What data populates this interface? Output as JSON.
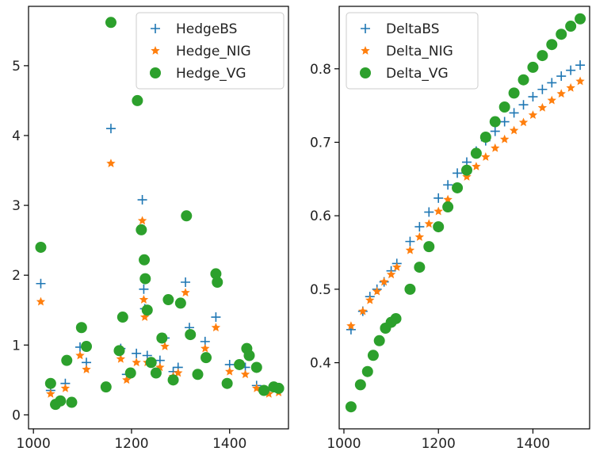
{
  "chart_data": [
    {
      "type": "scatter",
      "xlim": [
        990,
        1520
      ],
      "ylim": [
        -0.2,
        5.85
      ],
      "xticks": [
        1000,
        1200,
        1400
      ],
      "yticks": [
        0,
        1,
        2,
        3,
        4,
        5
      ],
      "grid": false,
      "legend_position": "top-right",
      "series": [
        {
          "name": "HedgeBS",
          "marker": "plus",
          "color": "#1f77b4",
          "x": [
            1015,
            1035,
            1065,
            1095,
            1108,
            1158,
            1178,
            1190,
            1210,
            1222,
            1227,
            1225,
            1232,
            1258,
            1268,
            1285,
            1295,
            1310,
            1318,
            1350,
            1372,
            1400,
            1432,
            1455,
            1480,
            1500
          ],
          "y": [
            1.88,
            0.35,
            0.45,
            0.97,
            0.75,
            4.1,
            0.95,
            0.58,
            0.88,
            3.08,
            1.52,
            1.8,
            0.85,
            0.78,
            1.1,
            0.62,
            0.68,
            1.9,
            1.25,
            1.05,
            1.4,
            0.72,
            0.68,
            0.42,
            0.35,
            0.38
          ]
        },
        {
          "name": "Hedge_NIG",
          "marker": "star",
          "color": "#ff7f0e",
          "x": [
            1015,
            1035,
            1065,
            1095,
            1108,
            1158,
            1178,
            1190,
            1210,
            1222,
            1227,
            1225,
            1232,
            1258,
            1268,
            1285,
            1295,
            1310,
            1318,
            1350,
            1372,
            1400,
            1432,
            1455,
            1480,
            1500
          ],
          "y": [
            1.62,
            0.3,
            0.38,
            0.85,
            0.65,
            3.6,
            0.8,
            0.5,
            0.75,
            2.78,
            1.4,
            1.65,
            0.75,
            0.68,
            0.98,
            0.55,
            0.6,
            1.75,
            1.15,
            0.95,
            1.25,
            0.62,
            0.58,
            0.38,
            0.3,
            0.32
          ]
        },
        {
          "name": "Hedge_VG",
          "marker": "circle",
          "color": "#2ca02c",
          "x": [
            1015,
            1035,
            1045,
            1055,
            1068,
            1078,
            1098,
            1108,
            1148,
            1158,
            1175,
            1182,
            1198,
            1212,
            1220,
            1226,
            1228,
            1232,
            1240,
            1250,
            1262,
            1275,
            1285,
            1300,
            1312,
            1320,
            1335,
            1352,
            1372,
            1375,
            1395,
            1420,
            1435,
            1440,
            1455,
            1470,
            1490,
            1500
          ],
          "y": [
            2.4,
            0.45,
            0.15,
            0.2,
            0.78,
            0.18,
            1.25,
            0.98,
            0.4,
            5.62,
            0.92,
            1.4,
            0.6,
            4.5,
            2.65,
            2.22,
            1.95,
            1.5,
            0.75,
            0.6,
            1.1,
            1.65,
            0.5,
            1.6,
            2.85,
            1.15,
            0.58,
            0.82,
            2.02,
            1.9,
            0.45,
            0.72,
            0.95,
            0.85,
            0.68,
            0.35,
            0.4,
            0.38
          ]
        }
      ]
    },
    {
      "type": "scatter",
      "xlim": [
        990,
        1520
      ],
      "ylim": [
        0.31,
        0.885
      ],
      "xticks": [
        1000,
        1200,
        1400
      ],
      "yticks": [
        0.4,
        0.5,
        0.6,
        0.7,
        0.8
      ],
      "grid": false,
      "legend_position": "top-left",
      "series": [
        {
          "name": "DeltaBS",
          "marker": "plus",
          "color": "#1f77b4",
          "x": [
            1015,
            1040,
            1055,
            1070,
            1085,
            1100,
            1112,
            1140,
            1160,
            1180,
            1200,
            1220,
            1240,
            1260,
            1280,
            1300,
            1320,
            1340,
            1360,
            1380,
            1400,
            1420,
            1440,
            1460,
            1480,
            1500
          ],
          "y": [
            0.445,
            0.47,
            0.49,
            0.5,
            0.51,
            0.525,
            0.535,
            0.565,
            0.585,
            0.605,
            0.624,
            0.642,
            0.658,
            0.673,
            0.688,
            0.702,
            0.715,
            0.728,
            0.74,
            0.751,
            0.762,
            0.772,
            0.781,
            0.79,
            0.798,
            0.805
          ]
        },
        {
          "name": "Delta_NIG",
          "marker": "star",
          "color": "#ff7f0e",
          "x": [
            1015,
            1040,
            1055,
            1070,
            1085,
            1100,
            1112,
            1140,
            1160,
            1180,
            1200,
            1220,
            1240,
            1260,
            1280,
            1300,
            1320,
            1340,
            1360,
            1380,
            1400,
            1420,
            1440,
            1460,
            1480,
            1500
          ],
          "y": [
            0.45,
            0.47,
            0.485,
            0.497,
            0.51,
            0.52,
            0.53,
            0.553,
            0.571,
            0.589,
            0.606,
            0.622,
            0.638,
            0.653,
            0.667,
            0.68,
            0.692,
            0.704,
            0.716,
            0.727,
            0.737,
            0.747,
            0.757,
            0.766,
            0.774,
            0.783
          ]
        },
        {
          "name": "Delta_VG",
          "marker": "circle",
          "color": "#2ca02c",
          "x": [
            1015,
            1035,
            1050,
            1062,
            1075,
            1088,
            1100,
            1110,
            1140,
            1160,
            1180,
            1200,
            1220,
            1240,
            1260,
            1280,
            1300,
            1320,
            1340,
            1360,
            1380,
            1400,
            1420,
            1440,
            1460,
            1480,
            1500
          ],
          "y": [
            0.34,
            0.37,
            0.388,
            0.41,
            0.43,
            0.447,
            0.455,
            0.46,
            0.5,
            0.53,
            0.558,
            0.585,
            0.612,
            0.638,
            0.662,
            0.685,
            0.707,
            0.728,
            0.748,
            0.767,
            0.785,
            0.802,
            0.818,
            0.833,
            0.847,
            0.858,
            0.868
          ]
        }
      ]
    }
  ],
  "colors": {
    "axis": "#000000",
    "text": "#222222",
    "legend_border": "#cccccc"
  }
}
